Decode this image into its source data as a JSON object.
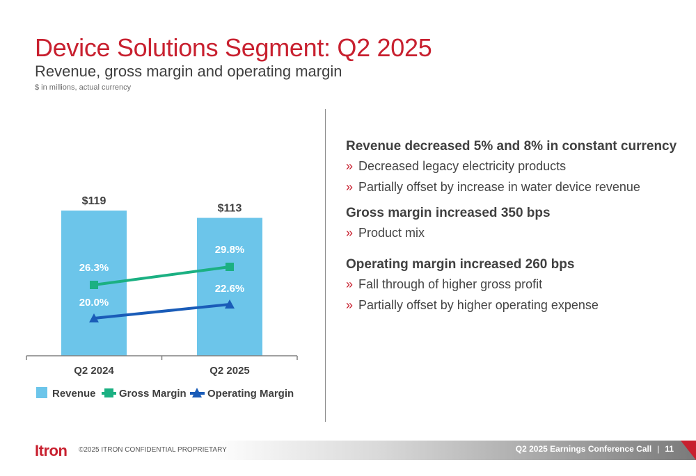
{
  "header": {
    "title": "Device Solutions Segment: Q2 2025",
    "subtitle": "Revenue, gross margin and operating margin",
    "note": "$ in millions, actual currency"
  },
  "chart_data": {
    "type": "bar",
    "categories": [
      "Q2 2024",
      "Q2 2025"
    ],
    "series": [
      {
        "name": "Revenue",
        "kind": "bar",
        "values": [
          119,
          113
        ],
        "labels": [
          "$119",
          "$113"
        ],
        "color": "#6cc5ea"
      },
      {
        "name": "Gross Margin",
        "kind": "line",
        "marker": "square",
        "values": [
          26.3,
          29.8
        ],
        "labels": [
          "26.3%",
          "29.8%"
        ],
        "color": "#1bb082"
      },
      {
        "name": "Operating Margin",
        "kind": "line",
        "marker": "triangle",
        "values": [
          20.0,
          22.6
        ],
        "labels": [
          "20.0%",
          "22.6%"
        ],
        "color": "#1a5cb8"
      }
    ],
    "legend_position": "bottom-left",
    "grid": false
  },
  "bullets": [
    {
      "heading": "Revenue decreased 5% and 8% in constant currency",
      "items": [
        "Decreased legacy electricity products",
        "Partially offset by increase in water device revenue"
      ]
    },
    {
      "heading": "Gross margin increased 350 bps",
      "items": [
        "Product mix"
      ]
    },
    {
      "heading": "Operating margin increased 260 bps",
      "items": [
        "Fall through of higher gross profit",
        "Partially offset by higher operating expense"
      ]
    }
  ],
  "bullet_mark": "»",
  "footer": {
    "logo_text": "Itron",
    "copyright": "©2025  ITRON CONFIDENTIAL PROPRIETARY",
    "event": "Q2 2025 Earnings Conference Call",
    "separator": "|",
    "page_number": "11"
  },
  "colors": {
    "brand_red": "#c8202f"
  }
}
